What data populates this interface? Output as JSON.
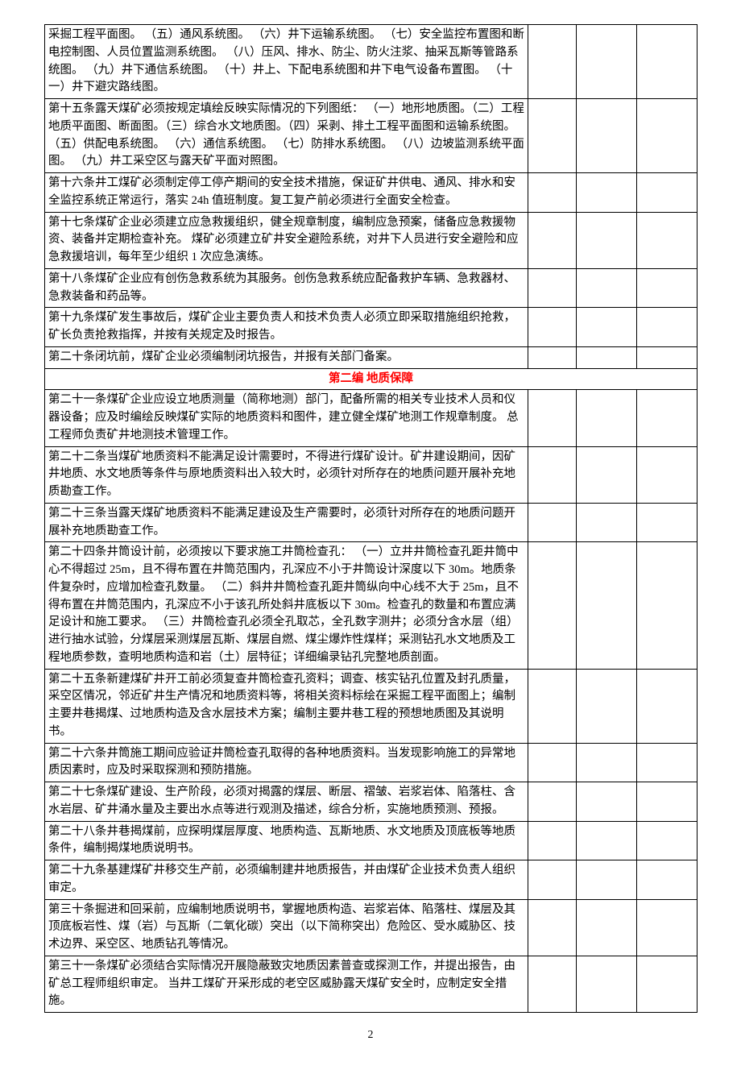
{
  "section_header": "第二编  地质保障",
  "page_number": "2",
  "rows": [
    {
      "text": "采掘工程平面图。 （五）通风系统图。 （六）井下运输系统图。 （七）安全监控布置图和断电控制图、人员位置监测系统图。 （八）压风、排水、防尘、防火注浆、抽采瓦斯等管路系统图。 （九）井下通信系统图。 （十）井上、下配电系统图和井下电气设备布置图。 （十一）井下避灾路线图。",
      "type": "cell"
    },
    {
      "text": "第十五条露天煤矿必须按规定填绘反映实际情况的下列图纸： （一）地形地质图。（二）工程地质平面图、断面图。（三）综合水文地质图。（四）采剥、排土工程平面图和运输系统图。 （五）供配电系统图。 （六）通信系统图。 （七）防排水系统图。 （八）边坡监测系统平面图。 （九）井工采空区与露天矿平面对照图。",
      "type": "cell"
    },
    {
      "text": "第十六条井工煤矿必须制定停工停产期间的安全技术措施，保证矿井供电、通风、排水和安全监控系统正常运行，落实 24h 值班制度。复工复产前必须进行全面安全检查。",
      "type": "cell"
    },
    {
      "text": "第十七条煤矿企业必须建立应急救援组织，健全规章制度，编制应急预案，储备应急救援物资、装备并定期检查补充。 煤矿必须建立矿井安全避险系统，对井下人员进行安全避险和应急救援培训，每年至少组织 1 次应急演练。",
      "type": "cell"
    },
    {
      "text": "第十八条煤矿企业应有创伤急救系统为其服务。创伤急救系统应配备救护车辆、急救器材、急救装备和药品等。",
      "type": "cell"
    },
    {
      "text": "第十九条煤矿发生事故后，煤矿企业主要负责人和技术负责人必须立即采取措施组织抢救，矿长负责抢救指挥，并按有关规定及时报告。",
      "type": "cell"
    },
    {
      "text": "第二十条闭坑前，煤矿企业必须编制闭坑报告，并报有关部门备案。",
      "type": "cell"
    },
    {
      "type": "header"
    },
    {
      "text": "第二十一条煤矿企业应设立地质测量（简称地测）部门，配备所需的相关专业技术人员和仪器设备；应及时编绘反映煤矿实际的地质资料和图件，建立健全煤矿地测工作规章制度。 总工程师负责矿井地测技术管理工作。",
      "type": "cell"
    },
    {
      "text": "第二十二条当煤矿地质资料不能满足设计需要时，不得进行煤矿设计。矿井建设期间，因矿井地质、水文地质等条件与原地质资料出入较大时，必须针对所存在的地质问题开展补充地质勘查工作。",
      "type": "cell"
    },
    {
      "text": "第二十三条当露天煤矿地质资料不能满足建设及生产需要时，必须针对所存在的地质问题开展补充地质勘查工作。",
      "type": "cell"
    },
    {
      "text": "第二十四条井筒设计前，必须按以下要求施工井筒检查孔： （一）立井井筒检查孔距井筒中心不得超过 25m，且不得布置在井筒范围内，孔深应不小于井筒设计深度以下 30m。地质条件复杂时，应增加检查孔数量。 （二）斜井井筒检查孔距井筒纵向中心线不大于 25m，且不得布置在井筒范围内，孔深应不小于该孔所处斜井底板以下 30m。检查孔的数量和布置应满足设计和施工要求。 （三）井筒检查孔必须全孔取芯，全孔数字测井；必须分含水层（组）进行抽水试验，分煤层采测煤层瓦斯、煤层自燃、煤尘爆炸性煤样；采测钻孔水文地质及工程地质参数，查明地质构造和岩（土）层特征；详细编录钻孔完整地质剖面。",
      "type": "cell"
    },
    {
      "text": "第二十五条新建煤矿井开工前必须复查井筒检查孔资料；调查、核实钻孔位置及封孔质量，采空区情况，邻近矿井生产情况和地质资料等，将相关资料标绘在采掘工程平面图上；编制主要井巷揭煤、过地质构造及含水层技术方案；编制主要井巷工程的预想地质图及其说明书。",
      "type": "cell"
    },
    {
      "text": "第二十六条井筒施工期间应验证井筒检查孔取得的各种地质资料。当发现影响施工的异常地质因素时，应及时采取探测和预防措施。",
      "type": "cell"
    },
    {
      "text": "第二十七条煤矿建设、生产阶段，必须对揭露的煤层、断层、褶皱、岩浆岩体、陷落柱、含水岩层、矿井涌水量及主要出水点等进行观测及描述，综合分析，实施地质预测、预报。",
      "type": "cell"
    },
    {
      "text": "第二十八条井巷揭煤前，应探明煤层厚度、地质构造、瓦斯地质、水文地质及顶底板等地质条件，编制揭煤地质说明书。",
      "type": "cell"
    },
    {
      "text": "第二十九条基建煤矿井移交生产前，必须编制建井地质报告，并由煤矿企业技术负责人组织审定。",
      "type": "cell"
    },
    {
      "text": "第三十条掘进和回采前，应编制地质说明书，掌握地质构造、岩浆岩体、陷落柱、煤层及其顶底板岩性、煤（岩）与瓦斯（二氧化碳）突出（以下简称突出）危险区、受水威胁区、技术边界、采空区、地质钻孔等情况。",
      "type": "cell"
    },
    {
      "text": "第三十一条煤矿必须结合实际情况开展隐蔽致灾地质因素普查或探测工作，并提出报告，由矿总工程师组织审定。 当井工煤矿开采形成的老空区威胁露天煤矿安全时，应制定安全措施。",
      "type": "cell"
    }
  ]
}
